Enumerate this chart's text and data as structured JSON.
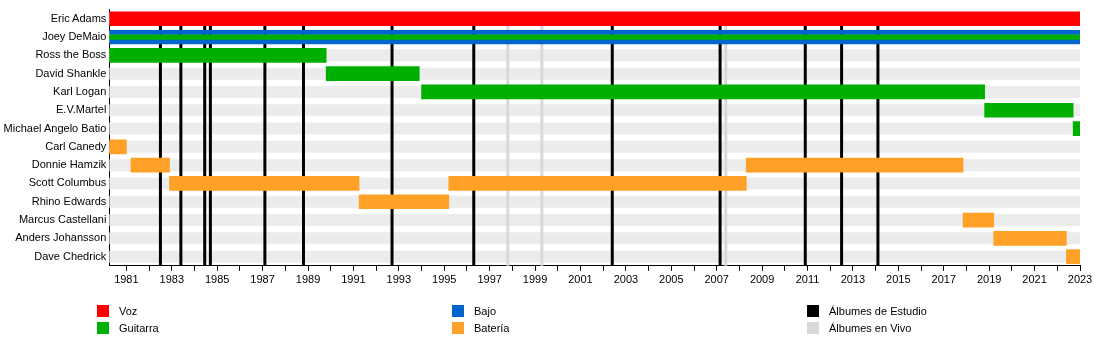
{
  "chart_data": {
    "type": "bar",
    "orientation": "horizontal",
    "categories": [
      "Eric Adams",
      "Joey DeMaio",
      "Ross the Boss",
      "David Shankle",
      "Karl Logan",
      "E.V.Martel",
      "Michael Angelo Batio",
      "Carl Canedy",
      "Donnie Hamzik",
      "Scott Columbus",
      "Rhino Edwards",
      "Marcus Castellani",
      "Anders Johansson",
      "Dave Chedrick"
    ],
    "series": [
      {
        "name": "Voz",
        "color": "#ff0000",
        "base": [
          1980.25,
          null,
          null,
          null,
          null,
          null,
          null,
          null,
          null,
          null,
          null,
          null,
          null,
          null
        ],
        "values": [
          42.75,
          null,
          null,
          null,
          null,
          null,
          null,
          null,
          null,
          null,
          null,
          null,
          null,
          null
        ]
      },
      {
        "name": "Guitarra",
        "color": "#00b000",
        "base": [
          null,
          null,
          1980.25,
          1989.8,
          1994.0,
          2018.8,
          2022.7,
          null,
          null,
          null,
          null,
          null,
          null,
          null
        ],
        "values": [
          null,
          null,
          9.55,
          4.1,
          24.8,
          3.9,
          0.3,
          null,
          null,
          null,
          null,
          null,
          null,
          null
        ]
      },
      {
        "name": "Bajo",
        "color": "#0066cc",
        "base": [
          null,
          1980.25,
          null,
          null,
          null,
          null,
          null,
          null,
          null,
          null,
          null,
          null,
          null,
          null
        ],
        "values": [
          null,
          42.75,
          null,
          null,
          null,
          null,
          null,
          null,
          null,
          null,
          null,
          null,
          null,
          null
        ]
      },
      {
        "name": "Batería",
        "color": "#ffa126",
        "base": [
          null,
          null,
          null,
          null,
          null,
          null,
          null,
          1980.25,
          1981.2,
          1982.9,
          1991.25,
          2017.85,
          2019.2,
          2022.4
        ],
        "values": [
          null,
          null,
          null,
          null,
          null,
          null,
          null,
          0.75,
          1.7,
          8.35,
          3.95,
          1.35,
          3.2,
          0.6
        ]
      },
      {
        "color": "#ffa126",
        "base": [
          null,
          null,
          null,
          null,
          null,
          null,
          null,
          null,
          2008.3,
          1995.2,
          null,
          null,
          null,
          null
        ],
        "values": [
          null,
          null,
          null,
          null,
          null,
          null,
          null,
          null,
          9.55,
          13.1,
          null,
          null,
          null,
          null
        ]
      },
      {
        "color": "#00b000",
        "base": [
          null,
          1980.25,
          null,
          null,
          null,
          null,
          null,
          null,
          null,
          null,
          null,
          null,
          null,
          null
        ],
        "values": [
          null,
          42.75,
          null,
          null,
          null,
          null,
          null,
          null,
          null,
          null,
          null,
          null,
          null,
          null
        ]
      }
    ],
    "xlim": [
      1980.25,
      2023
    ],
    "xticks": [
      1981,
      {
        "value": 1982,
        "label": null
      },
      1983,
      {
        "value": 1984,
        "label": null
      },
      1985,
      {
        "value": 1986,
        "label": null
      },
      1987,
      {
        "value": 1988,
        "label": null
      },
      1989,
      {
        "value": 1990,
        "label": null
      },
      1991,
      {
        "value": 1992,
        "label": null
      },
      1993,
      {
        "value": 1994,
        "label": null
      },
      1995,
      {
        "value": 1996,
        "label": null
      },
      1997,
      {
        "value": 1998,
        "label": null
      },
      1999,
      {
        "value": 2000,
        "label": null
      },
      2001,
      {
        "value": 2002,
        "label": null
      },
      2003,
      {
        "value": 2004,
        "label": null
      },
      2005,
      {
        "value": 2006,
        "label": null
      },
      2007,
      {
        "value": 2008,
        "label": null
      },
      2009,
      {
        "value": 2010,
        "label": null
      },
      2011,
      {
        "value": 2012,
        "label": null
      },
      2013,
      {
        "value": 2014,
        "label": null
      },
      2015,
      {
        "value": 2016,
        "label": null
      },
      2017,
      {
        "value": 2018,
        "label": null
      },
      2019,
      {
        "value": 2020,
        "label": null
      },
      2021,
      {
        "value": 2022,
        "label": null
      },
      2023
    ],
    "ref_lines": [
      {
        "axis": "x",
        "value": 1982.5,
        "color": "#000000"
      },
      {
        "axis": "x",
        "value": 1983.4,
        "color": "#000000"
      },
      {
        "axis": "x",
        "value": 1984.45,
        "color": "#000000"
      },
      {
        "axis": "x",
        "value": 1984.7,
        "color": "#000000"
      },
      {
        "axis": "x",
        "value": 1987.1,
        "color": "#000000"
      },
      {
        "axis": "x",
        "value": 1988.8,
        "color": "#000000"
      },
      {
        "axis": "x",
        "value": 1992.7,
        "color": "#000000"
      },
      {
        "axis": "x",
        "value": 1996.3,
        "color": "#000000"
      },
      {
        "axis": "x",
        "value": 2002.4,
        "color": "#000000"
      },
      {
        "axis": "x",
        "value": 2007.15,
        "color": "#000000"
      },
      {
        "axis": "x",
        "value": 2010.9,
        "color": "#000000"
      },
      {
        "axis": "x",
        "value": 2012.5,
        "color": "#000000"
      },
      {
        "axis": "x",
        "value": 2014.1,
        "color": "#000000"
      },
      {
        "axis": "x",
        "value": 1997.8,
        "color": "#d9d9d9"
      },
      {
        "axis": "x",
        "value": 1999.3,
        "color": "#d9d9d9"
      },
      {
        "axis": "x",
        "value": 2007.4,
        "color": "#d9d9d9"
      }
    ],
    "annotations": [
      "Álbumes de Estudio",
      "Álbumes en Vivo"
    ],
    "legend": "bottom"
  }
}
